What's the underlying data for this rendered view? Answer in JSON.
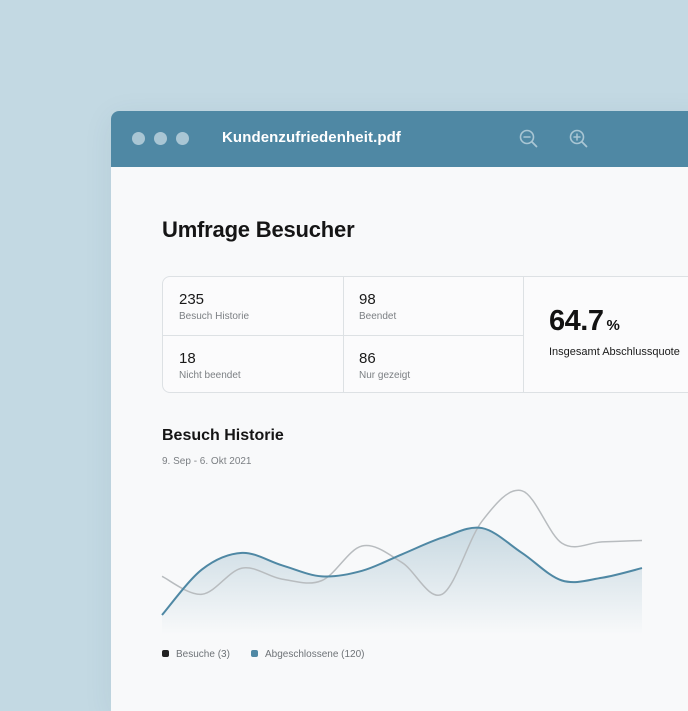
{
  "window": {
    "title": "Kundenzufriedenheit.pdf",
    "icons": [
      "zoom-out-icon",
      "zoom-in-icon"
    ],
    "colors": {
      "titlebar": "#4f88a4",
      "background": "#c3d9e3"
    }
  },
  "page": {
    "title": "Umfrage Besucher",
    "stats": [
      {
        "value": "235",
        "label": "Besuch Historie"
      },
      {
        "value": "98",
        "label": "Beendet"
      },
      {
        "value": "18",
        "label": "Nicht beendet"
      },
      {
        "value": "86",
        "label": "Nur gezeigt"
      }
    ],
    "summary": {
      "value": "64.7",
      "unit": "%",
      "label": "Insgesamt Abschlussquote"
    }
  },
  "history": {
    "title": "Besuch Historie",
    "range": "9. Sep - 6. Okt 2021"
  },
  "legend": [
    {
      "label": "Besuche (3)",
      "color": "#222222"
    },
    {
      "label": "Abgeschlossene (120)",
      "color": "#4f88a4"
    }
  ],
  "chart_data": {
    "type": "line",
    "title": "Besuch Historie",
    "grid": false,
    "ylim": [
      0,
      100
    ],
    "x": [
      0,
      1,
      2,
      3,
      4,
      5,
      6,
      7,
      8,
      9,
      10,
      11,
      12
    ],
    "series": [
      {
        "name": "Besuche (3)",
        "color": "#b8bcbf",
        "values": [
          28,
          15,
          34,
          26,
          25,
          50,
          38,
          15,
          68,
          90,
          52,
          53,
          54
        ]
      },
      {
        "name": "Abgeschlossene (120)",
        "color": "#4f88a4",
        "values": [
          0,
          33,
          45,
          36,
          28,
          32,
          44,
          56,
          63,
          45,
          25,
          27,
          34
        ]
      }
    ]
  }
}
